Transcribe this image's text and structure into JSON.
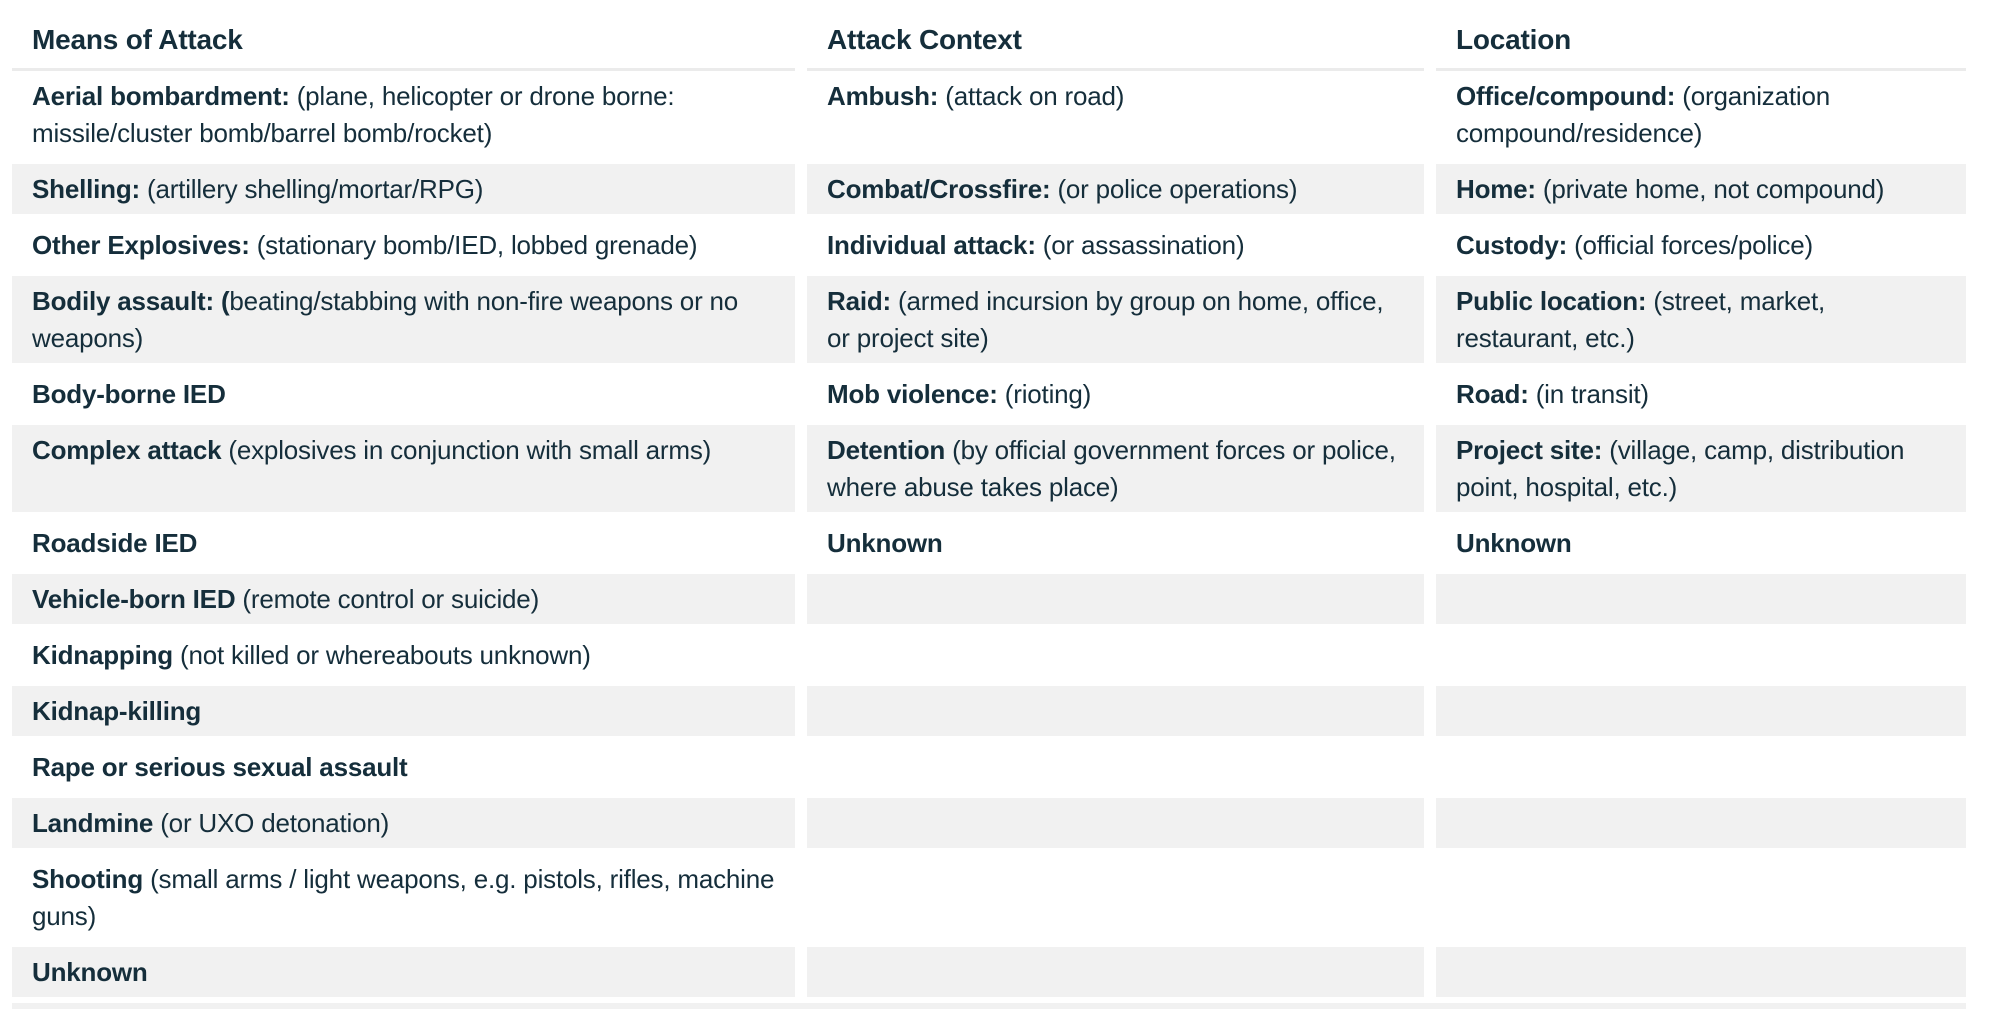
{
  "table": {
    "columns": [
      {
        "title": "Means of Attack"
      },
      {
        "title": "Attack Context"
      },
      {
        "title": "Location"
      }
    ],
    "rows": [
      [
        {
          "b": "Aerial bombardment:",
          "t": " (plane, helicopter or drone borne: missile/cluster bomb/barrel bomb/rocket)"
        },
        {
          "b": "Ambush:",
          "t": " (attack on road)"
        },
        {
          "b": "Office/compound:",
          "t": " (organization compound/residence)"
        }
      ],
      [
        {
          "b": "Shelling:",
          "t": " (artillery shelling/mortar/RPG)"
        },
        {
          "b": "Combat/Crossfire:",
          "t": " (or police operations)"
        },
        {
          "b": "Home:",
          "t": " (private home, not compound)"
        }
      ],
      [
        {
          "b": "Other Explosives:",
          "t": " (stationary bomb/IED, lobbed grenade)"
        },
        {
          "b": "Individual attack:",
          "t": " (or assassination)"
        },
        {
          "b": "Custody:",
          "t": " (official forces/police)"
        }
      ],
      [
        {
          "b": "Bodily assault: (",
          "t": "beating/stabbing with non-fire weapons or no weapons)"
        },
        {
          "b": "Raid:",
          "t": " (armed incursion by group on home, office, or project site)"
        },
        {
          "b": "Public location:",
          "t": " (street, market, restaurant, etc.)"
        }
      ],
      [
        {
          "b": "Body-borne IED",
          "t": ""
        },
        {
          "b": "Mob violence:",
          "t": " (rioting)"
        },
        {
          "b": "Road:",
          "t": " (in transit)"
        }
      ],
      [
        {
          "b": "Complex attack",
          "t": " (explosives in conjunction with small arms)"
        },
        {
          "b": "Detention",
          "t": " (by official government forces or police, where abuse takes place)"
        },
        {
          "b": "Project site:",
          "t": " (village, camp, distribution point, hospital, etc.)"
        }
      ],
      [
        {
          "b": "Roadside IED",
          "t": ""
        },
        {
          "b": "Unknown",
          "t": ""
        },
        {
          "b": "Unknown",
          "t": ""
        }
      ],
      [
        {
          "b": "Vehicle-born IED",
          "t": " (remote control or suicide)"
        },
        {
          "b": "",
          "t": ""
        },
        {
          "b": "",
          "t": ""
        }
      ],
      [
        {
          "b": "Kidnapping",
          "t": " (not killed or whereabouts unknown)"
        },
        {
          "b": "",
          "t": ""
        },
        {
          "b": "",
          "t": ""
        }
      ],
      [
        {
          "b": "Kidnap-killing",
          "t": ""
        },
        {
          "b": "",
          "t": ""
        },
        {
          "b": "",
          "t": ""
        }
      ],
      [
        {
          "b": "Rape or serious sexual assault",
          "t": ""
        },
        {
          "b": "",
          "t": ""
        },
        {
          "b": "",
          "t": ""
        }
      ],
      [
        {
          "b": "Landmine",
          "t": " (or UXO detonation)"
        },
        {
          "b": "",
          "t": ""
        },
        {
          "b": "",
          "t": ""
        }
      ],
      [
        {
          "b": "Shooting",
          "t": " (small arms / light weapons, e.g. pistols, rifles, machine guns)"
        },
        {
          "b": "",
          "t": ""
        },
        {
          "b": "",
          "t": ""
        }
      ],
      [
        {
          "b": "Unknown",
          "t": ""
        },
        {
          "b": "",
          "t": ""
        },
        {
          "b": "",
          "t": ""
        }
      ]
    ]
  },
  "colors": {
    "text": "#152e3b",
    "row_stripe": "#f1f1f1",
    "header_border": "#ebebeb",
    "background": "#ffffff"
  }
}
